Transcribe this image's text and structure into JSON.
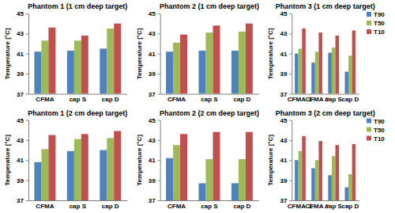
{
  "chart_data": [
    {
      "type": "bar",
      "title": "Phantom 1 (1 cm deep target)",
      "y_label": "Temperature [°C]",
      "categories": [
        "CFMA",
        "cap S",
        "cap D"
      ],
      "series": [
        {
          "name": "T90",
          "color": "#4f81bd",
          "values": [
            41.2,
            41.3,
            41.5
          ]
        },
        {
          "name": "T50",
          "color": "#9bbb59",
          "values": [
            42.3,
            42.3,
            43.5
          ]
        },
        {
          "name": "T10",
          "color": "#c0504d",
          "values": [
            43.6,
            42.8,
            44.0
          ]
        }
      ],
      "ylim": [
        37,
        45
      ],
      "yticks": [
        37,
        39,
        41,
        43,
        45
      ],
      "grid": false,
      "legend": false
    },
    {
      "type": "bar",
      "title": "Phantom 2 (1 cm deep target)",
      "y_label": "Temperature [°C]",
      "categories": [
        "CFMA",
        "cap S",
        "cap D"
      ],
      "series": [
        {
          "name": "T90",
          "color": "#4f81bd",
          "values": [
            41.2,
            41.3,
            41.3
          ]
        },
        {
          "name": "T50",
          "color": "#9bbb59",
          "values": [
            42.1,
            43.1,
            43.2
          ]
        },
        {
          "name": "T10",
          "color": "#c0504d",
          "values": [
            42.9,
            43.8,
            44.0
          ]
        }
      ],
      "ylim": [
        37,
        45
      ],
      "yticks": [
        37,
        39,
        41,
        43,
        45
      ],
      "grid": false,
      "legend": false
    },
    {
      "type": "bar",
      "title": "Phantom 3 (1 cm deep target)",
      "y_label": "Temperature [°C]",
      "categories": [
        "CFMA ⊥",
        "CFMA //",
        "cap S",
        "cap D"
      ],
      "series": [
        {
          "name": "T90",
          "color": "#4f81bd",
          "values": [
            41.0,
            40.1,
            41.1,
            39.2
          ]
        },
        {
          "name": "T50",
          "color": "#9bbb59",
          "values": [
            41.5,
            41.2,
            41.6,
            40.8
          ]
        },
        {
          "name": "T10",
          "color": "#c0504d",
          "values": [
            43.5,
            43.1,
            42.8,
            43.3
          ]
        }
      ],
      "ylim": [
        37,
        45
      ],
      "yticks": [
        37,
        39,
        41,
        43,
        45
      ],
      "grid": false,
      "legend": "right"
    },
    {
      "type": "bar",
      "title": "Phantom 1 (2 cm deep target)",
      "y_label": "Temperature [°C]",
      "categories": [
        "CFMA",
        "cap S",
        "cap D"
      ],
      "series": [
        {
          "name": "T90",
          "color": "#4f81bd",
          "values": [
            40.8,
            41.9,
            42.0
          ]
        },
        {
          "name": "T50",
          "color": "#9bbb59",
          "values": [
            42.1,
            43.1,
            43.2
          ]
        },
        {
          "name": "T10",
          "color": "#c0504d",
          "values": [
            43.5,
            43.6,
            43.9
          ]
        }
      ],
      "ylim": [
        37,
        45
      ],
      "yticks": [
        37,
        39,
        41,
        43,
        45
      ],
      "grid": false,
      "legend": false
    },
    {
      "type": "bar",
      "title": "Phantom 2 (2 cm deep target)",
      "y_label": "Temperature [°C]",
      "categories": [
        "CFMA",
        "cap S",
        "cap D"
      ],
      "series": [
        {
          "name": "T90",
          "color": "#4f81bd",
          "values": [
            41.2,
            38.7,
            38.7
          ]
        },
        {
          "name": "T50",
          "color": "#9bbb59",
          "values": [
            42.5,
            41.1,
            41.1
          ]
        },
        {
          "name": "T10",
          "color": "#c0504d",
          "values": [
            43.6,
            43.8,
            43.8
          ]
        }
      ],
      "ylim": [
        37,
        45
      ],
      "yticks": [
        37,
        39,
        41,
        43,
        45
      ],
      "grid": false,
      "legend": false
    },
    {
      "type": "bar",
      "title": "Phantom 3 (2 cm deep target)",
      "y_label": "Temperature [°C]",
      "categories": [
        "CFMA ⊥",
        "CFMA //",
        "cap S",
        "cap D"
      ],
      "series": [
        {
          "name": "T90",
          "color": "#4f81bd",
          "values": [
            41.0,
            40.2,
            39.5,
            38.3
          ]
        },
        {
          "name": "T50",
          "color": "#9bbb59",
          "values": [
            41.9,
            41.0,
            41.4,
            39.6
          ]
        },
        {
          "name": "T10",
          "color": "#c0504d",
          "values": [
            43.4,
            42.9,
            42.5,
            42.6
          ]
        }
      ],
      "ylim": [
        37,
        45
      ],
      "yticks": [
        37,
        39,
        41,
        43,
        45
      ],
      "grid": false,
      "legend": "right"
    }
  ]
}
